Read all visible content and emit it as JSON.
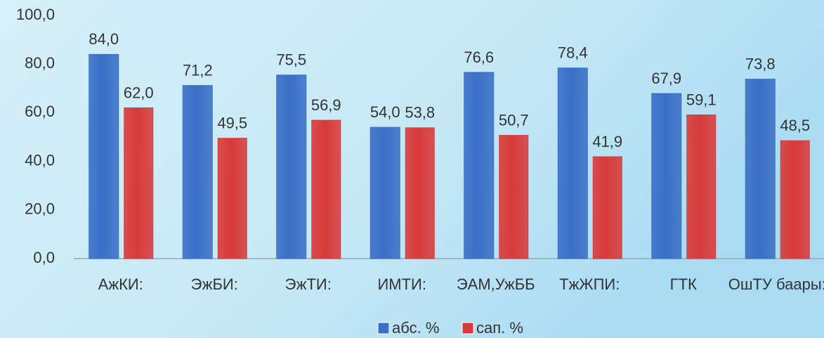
{
  "chart_data": {
    "type": "bar",
    "categories": [
      "АжКИ:",
      "ЭжБИ:",
      "ЭжТИ:",
      "ИМТИ:",
      "ЭАМ,УжББ",
      "ТжЖПИ:",
      "ГТК",
      "ОшТУ баары:"
    ],
    "series": [
      {
        "name": "абс. %",
        "color": "#3a6fc6",
        "values": [
          84.0,
          71.2,
          75.5,
          54.0,
          76.6,
          78.4,
          67.9,
          73.8
        ],
        "value_labels": [
          "84,0",
          "71,2",
          "75,5",
          "54,0",
          "76,6",
          "78,4",
          "67,9",
          "73,8"
        ]
      },
      {
        "name": "сап. %",
        "color": "#d83a3a",
        "values": [
          62.0,
          49.5,
          56.9,
          53.8,
          50.7,
          41.9,
          59.1,
          48.5
        ],
        "value_labels": [
          "62,0",
          "49,5",
          "56,9",
          "53,8",
          "50,7",
          "41,9",
          "59,1",
          "48,5"
        ]
      }
    ],
    "ylim": [
      0,
      100
    ],
    "yticks": [
      {
        "value": 0,
        "label": "0,0"
      },
      {
        "value": 20,
        "label": "20,0"
      },
      {
        "value": 40,
        "label": "40,0"
      },
      {
        "value": 60,
        "label": "60,0"
      },
      {
        "value": 80,
        "label": "80,0"
      },
      {
        "value": 100,
        "label": "100,0"
      }
    ],
    "legend": "bottom"
  }
}
